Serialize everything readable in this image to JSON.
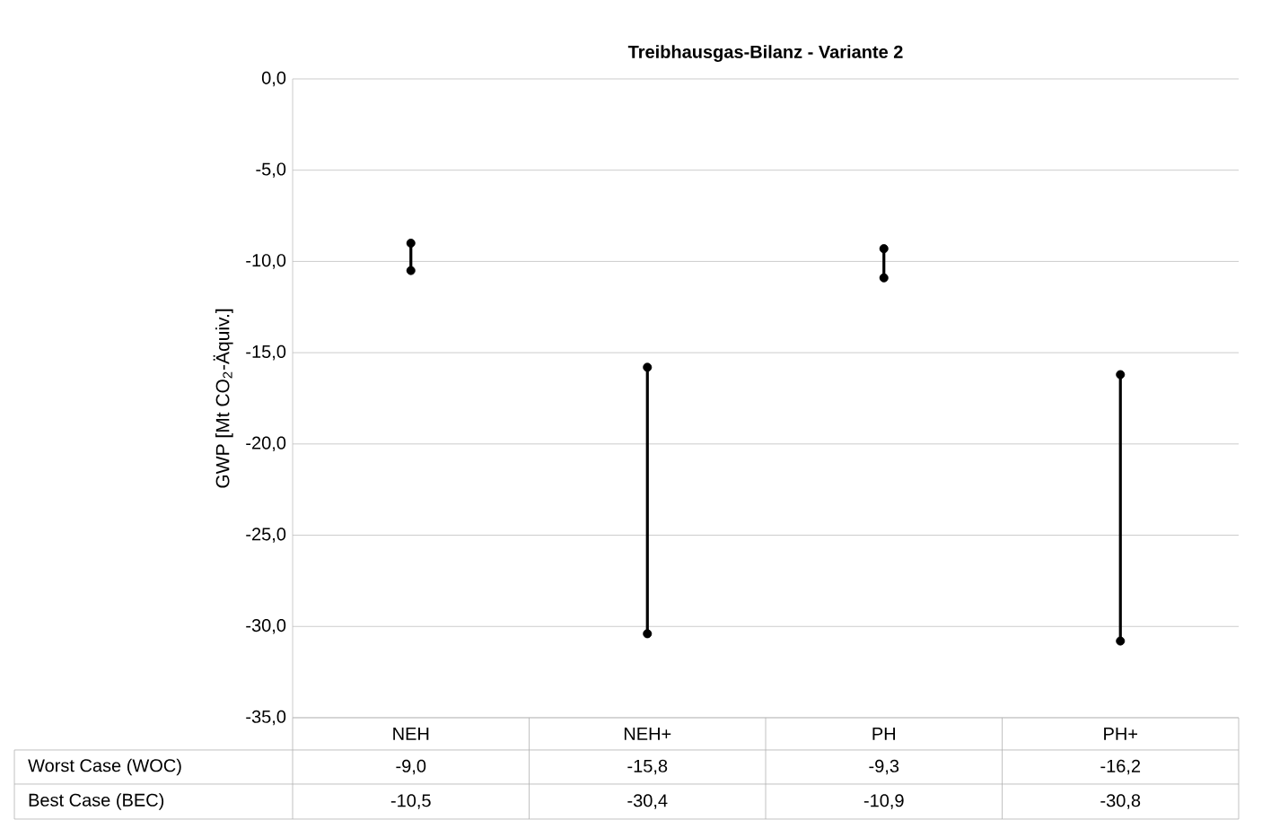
{
  "chart_data": {
    "type": "scatter",
    "title": "Treibhausgas-Bilanz - Variante 2",
    "ylabel": "GWP [Mt CO$_{2}$-Äquiv.]",
    "categories": [
      "NEH",
      "NEH+",
      "PH",
      "PH+"
    ],
    "series": [
      {
        "color": "#000000",
        "values": [
          -9.0,
          -15.8,
          -9.3,
          -16.2
        ],
        "value_labels": [
          "-9,0",
          "-15,8",
          "-9,3",
          "-16,2"
        ]
      },
      {
        "color": "#000000",
        "values": [
          -10.5,
          -30.4,
          -10.9,
          -30.8
        ],
        "value_labels": [
          "-10,5",
          "-30,4",
          "-10,9",
          "-30,8"
        ]
      }
    ],
    "annotations": [
      "Worst Case (WOC)",
      "Best Case (BEC)"
    ],
    "ylim": [
      -35,
      0
    ],
    "yticks": [
      {
        "value": 0,
        "label": "0,0"
      },
      {
        "value": -5,
        "label": "-5,0"
      },
      {
        "value": -10,
        "label": "-10,0"
      },
      {
        "value": -15,
        "label": "-15,0"
      },
      {
        "value": -20,
        "label": "-20,0"
      },
      {
        "value": -25,
        "label": "-25,0"
      },
      {
        "value": -30,
        "label": "-30,0"
      },
      {
        "value": -35,
        "label": "-35,0"
      }
    ],
    "grid": "y",
    "marker": "circle",
    "legend": false
  }
}
